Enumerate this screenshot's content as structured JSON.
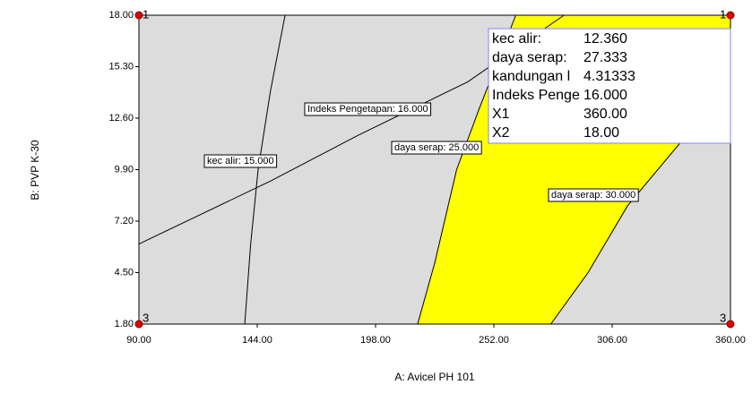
{
  "chart_data": {
    "type": "contour",
    "x_label": "A: Avicel PH 101",
    "y_label": "B: PVP K-30",
    "xlim": [
      90,
      360
    ],
    "ylim": [
      1.8,
      18
    ],
    "xticks": [
      {
        "value": 90,
        "label": "90.00"
      },
      {
        "value": 144,
        "label": "144.00"
      },
      {
        "value": 198,
        "label": "198.00"
      },
      {
        "value": 252,
        "label": "252.00"
      },
      {
        "value": 306,
        "label": "306.00"
      },
      {
        "value": 360,
        "label": "360.00"
      }
    ],
    "yticks": [
      {
        "value": 1.8,
        "label": "1.80"
      },
      {
        "value": 4.5,
        "label": "4.50"
      },
      {
        "value": 7.2,
        "label": "7.20"
      },
      {
        "value": 9.9,
        "label": "9.90"
      },
      {
        "value": 12.6,
        "label": "12.60"
      },
      {
        "value": 15.3,
        "label": "15.30"
      },
      {
        "value": 18,
        "label": "18.00"
      }
    ],
    "background": "#dcdcdc",
    "region_color": "#ffff00",
    "contours": [
      {
        "label": "kec alir: 15.000",
        "x": [
          138.3,
          141,
          144.4,
          150,
          156.7
        ],
        "y": [
          1.8,
          6,
          9.9,
          14,
          18
        ]
      },
      {
        "label": "Indeks Pengetapan: 16.000",
        "x": [
          90,
          150,
          190,
          240,
          284
        ],
        "y": [
          6.0,
          9.3,
          11.7,
          14.5,
          18
        ]
      },
      {
        "label": "daya serap: 25.000",
        "x": [
          217.2,
          225,
          235,
          245,
          262
        ],
        "y": [
          1.8,
          5,
          9.9,
          13,
          18
        ]
      },
      {
        "label": "daya serap: 30.000",
        "x": [
          278,
          295,
          313,
          337,
          352,
          360
        ],
        "y": [
          1.8,
          4.5,
          8,
          11.3,
          14,
          15.5
        ]
      }
    ],
    "design_points": [
      {
        "x": 90,
        "y": 1.8,
        "label": "3"
      },
      {
        "x": 90,
        "y": 18,
        "label": "1"
      },
      {
        "x": 360,
        "y": 18,
        "label": "1"
      },
      {
        "x": 360,
        "y": 1.8,
        "label": "3"
      }
    ],
    "flag": [
      {
        "label": "kec alir:",
        "value": "12.360"
      },
      {
        "label": "daya serap:",
        "value": "27.333"
      },
      {
        "label": "kandungan l",
        "value": "4.31333"
      },
      {
        "label": "Indeks Penge",
        "value": "16.000"
      },
      {
        "label": "X1",
        "value": "360.00"
      },
      {
        "label": "X2",
        "value": "18.00"
      }
    ]
  }
}
